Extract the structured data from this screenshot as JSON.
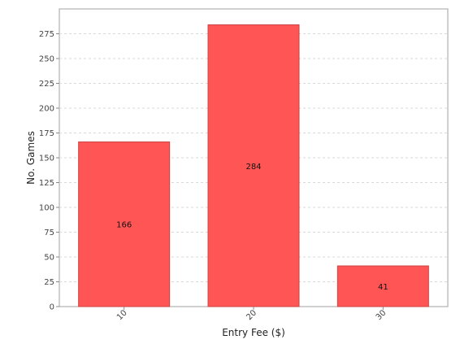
{
  "chart_data": {
    "type": "bar",
    "categories": [
      "10",
      "20",
      "30"
    ],
    "values": [
      166,
      284,
      41
    ],
    "data_labels": [
      "166",
      "284",
      "41"
    ],
    "xlabel": "Entry Fee ($)",
    "ylabel": "No. Games",
    "ylim": [
      0,
      300
    ],
    "yticks": [
      0,
      25,
      50,
      75,
      100,
      125,
      150,
      175,
      200,
      225,
      250,
      275
    ],
    "grid": "horizontal dashed",
    "legend": "none",
    "bar_color": "#ff5555",
    "bar_edge_color": "#cc4444"
  }
}
